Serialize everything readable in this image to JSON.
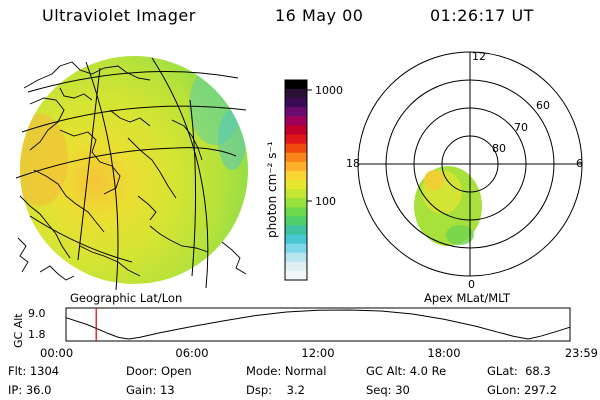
{
  "header": {
    "title": "Ultraviolet Imager",
    "date": "16 May 00",
    "time": "01:26:17 UT"
  },
  "colorbar": {
    "unit_label": "photon cm⁻² s⁻¹",
    "tick_labels": [
      "1000",
      "100"
    ],
    "colors": [
      "#000000",
      "#2b1036",
      "#3a0b54",
      "#6b0b6e",
      "#a0005a",
      "#c0002a",
      "#e0161a",
      "#f04a10",
      "#f8861a",
      "#ffb02a",
      "#f9d634",
      "#e6e830",
      "#c4e634",
      "#98e03e",
      "#6ed84c",
      "#4ecf6a",
      "#3ec2a2",
      "#48c8d0",
      "#7ed8e8",
      "#b8e6ee",
      "#e0eef2",
      "#f2f6f8"
    ]
  },
  "left_map": {
    "caption": "Geographic Lat/Lon"
  },
  "polar_plot": {
    "caption": "Apex MLat/MLT",
    "mlt_labels": {
      "top": "12",
      "right": "6",
      "bottom": "0",
      "left": "18"
    },
    "lat_labels": [
      "60",
      "70",
      "80"
    ]
  },
  "altitude_plot": {
    "axis_label": "GC Alt",
    "y_ticks": [
      "9.0",
      "1.8"
    ],
    "x_ticks": [
      "00:00",
      "06:00",
      "12:00",
      "18:00",
      "23:59"
    ],
    "current_time_marker_hours": 1.438,
    "curve": [
      [
        0,
        7.1
      ],
      [
        1,
        5.4
      ],
      [
        2,
        3.2
      ],
      [
        2.5,
        2.2
      ],
      [
        3,
        1.8
      ],
      [
        3.5,
        2.2
      ],
      [
        4.5,
        3.4
      ],
      [
        6,
        4.9
      ],
      [
        7.5,
        6.3
      ],
      [
        9,
        7.6
      ],
      [
        10.5,
        8.5
      ],
      [
        12,
        8.95
      ],
      [
        13.5,
        9.0
      ],
      [
        15,
        8.75
      ],
      [
        16.5,
        8.0
      ],
      [
        18,
        6.7
      ],
      [
        19.5,
        5.0
      ],
      [
        20.5,
        3.6
      ],
      [
        21.3,
        2.5
      ],
      [
        22,
        1.8
      ],
      [
        22.6,
        2.5
      ],
      [
        23.3,
        3.6
      ],
      [
        23.98,
        4.7
      ]
    ]
  },
  "status": {
    "flt_label": "Flt:",
    "flt_value": "1304",
    "ip_label": "IP:",
    "ip_value": "36.0",
    "door_label": "Door:",
    "door_value": "Open",
    "gain_label": "Gain:",
    "gain_value": "13",
    "mode_label": "Mode:",
    "mode_value": "Normal",
    "dsp_label": "Dsp:",
    "dsp_value": "3.2",
    "gcalt_label": "GC Alt:",
    "gcalt_value": "4.0 Re",
    "seq_label": "Seq:",
    "seq_value": "30",
    "glat_label": "GLat:",
    "glat_value": "68.3",
    "glon_label": "GLon:",
    "glon_value": "297.2"
  }
}
